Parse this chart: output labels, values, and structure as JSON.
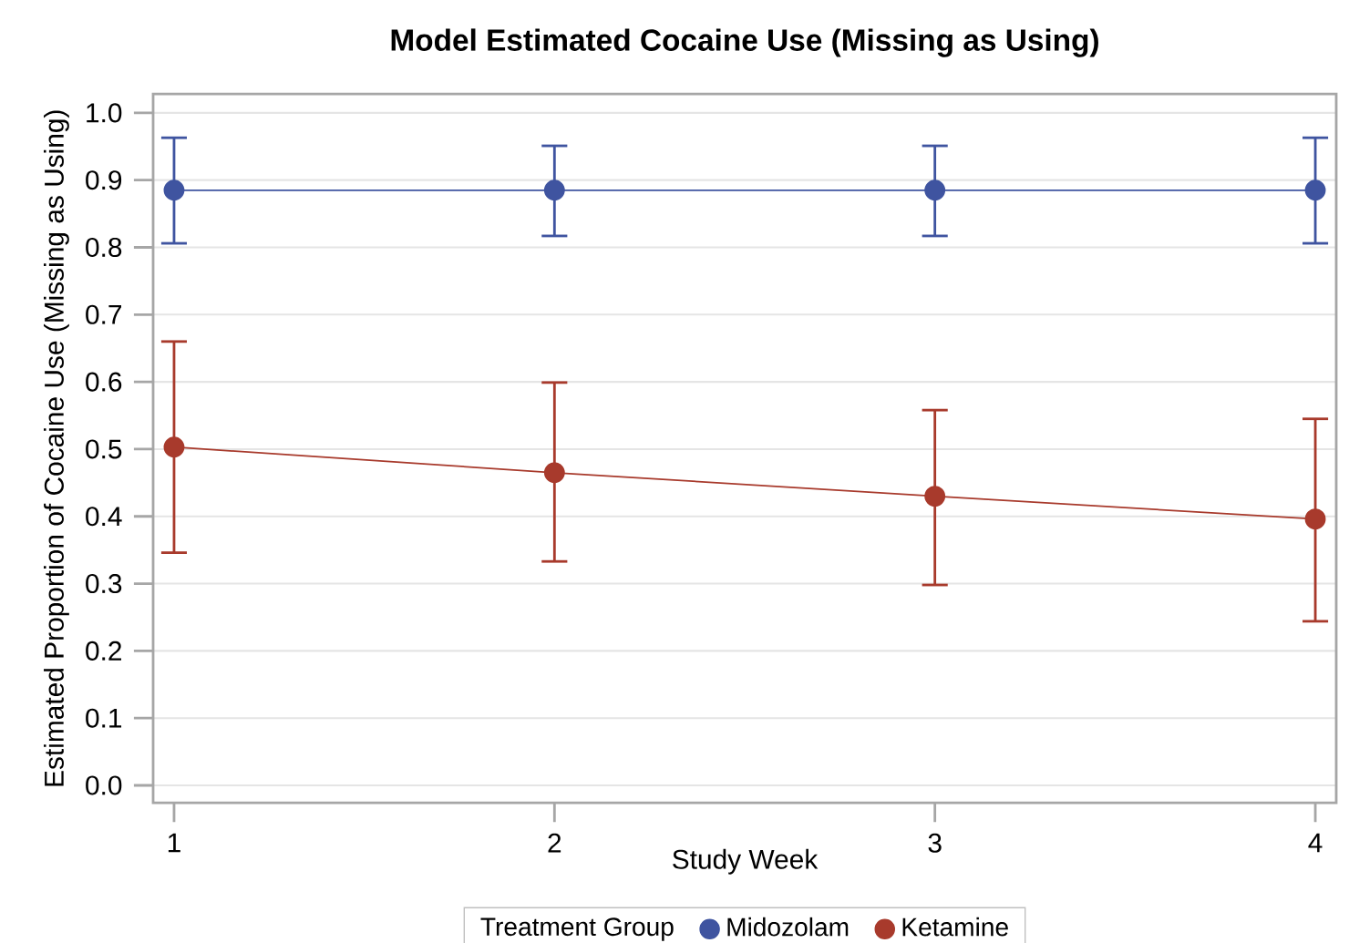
{
  "chart_data": {
    "type": "line",
    "title": "Model Estimated Cocaine Use (Missing as Using)",
    "xlabel": "Study Week",
    "ylabel": "Estimated Proportion of Cocaine Use (Missing as Using)",
    "legend_title": "Treatment Group",
    "x": [
      1,
      2,
      3,
      4
    ],
    "xlim": [
      0.945,
      4.055
    ],
    "xticks": [
      1,
      2,
      3,
      4
    ],
    "ylim": [
      -0.026,
      1.028
    ],
    "yticks": [
      {
        "value": 0,
        "label": "0.0"
      },
      {
        "value": 0.1,
        "label": "0.1"
      },
      {
        "value": 0.2,
        "label": "0.2"
      },
      {
        "value": 0.3,
        "label": "0.3"
      },
      {
        "value": 0.4,
        "label": "0.4"
      },
      {
        "value": 0.5,
        "label": "0.5"
      },
      {
        "value": 0.6,
        "label": "0.6"
      },
      {
        "value": 0.7,
        "label": "0.7"
      },
      {
        "value": 0.8,
        "label": "0.8"
      },
      {
        "value": 0.9,
        "label": "0.9"
      },
      {
        "value": 1.0,
        "label": "1.0"
      }
    ],
    "grid": "y",
    "legend": "bottom",
    "marker": "circle",
    "line_style": "solid",
    "series": [
      {
        "name": "Midozolam",
        "color": "#3f54a0",
        "values": [
          0.885,
          0.885,
          0.885,
          0.885
        ],
        "errors": [
          [
            0.806,
            0.963
          ],
          [
            0.817,
            0.951
          ],
          [
            0.817,
            0.951
          ],
          [
            0.806,
            0.963
          ]
        ]
      },
      {
        "name": "Ketamine",
        "color": "#a83a2c",
        "values": [
          0.503,
          0.465,
          0.43,
          0.396
        ],
        "errors": [
          [
            0.346,
            0.66
          ],
          [
            0.333,
            0.599
          ],
          [
            0.298,
            0.558
          ],
          [
            0.244,
            0.545
          ]
        ]
      }
    ]
  }
}
